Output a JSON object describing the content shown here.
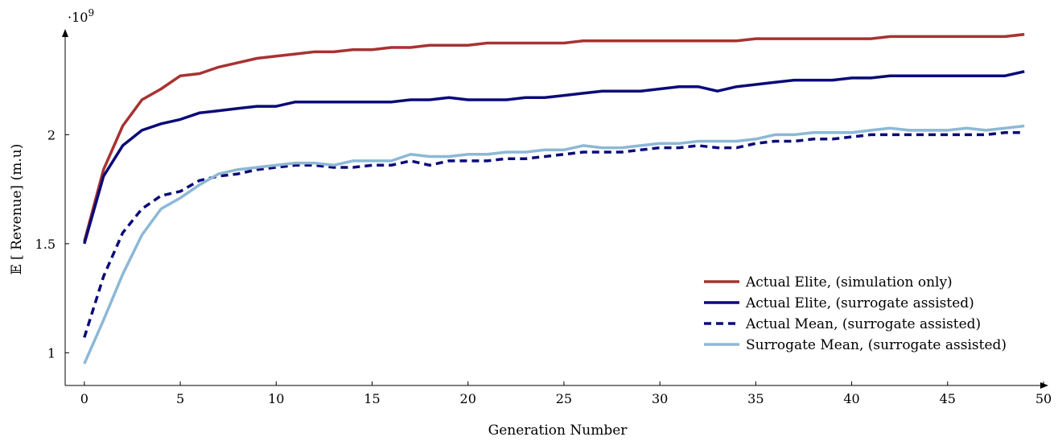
{
  "chart_data": {
    "type": "line",
    "title": "",
    "xlabel": "Generation Number",
    "ylabel": "𝔼 [ Revenue] (m.u)",
    "y_multiplier_label": "·10",
    "y_multiplier_exponent": "9",
    "xlim": [
      -1,
      50
    ],
    "ylim": [
      0.85,
      2.47
    ],
    "x_ticks": [
      0,
      5,
      10,
      15,
      20,
      25,
      30,
      35,
      40,
      45,
      50
    ],
    "y_ticks": [
      1,
      1.5,
      2
    ],
    "y_tick_labels": [
      "1",
      "1.5",
      "2"
    ],
    "legend_position": "bottom-right",
    "grid": false,
    "x": [
      0,
      1,
      2,
      3,
      4,
      5,
      6,
      7,
      8,
      9,
      10,
      11,
      12,
      13,
      14,
      15,
      16,
      17,
      18,
      19,
      20,
      21,
      22,
      23,
      24,
      25,
      26,
      27,
      28,
      29,
      30,
      31,
      32,
      33,
      34,
      35,
      36,
      37,
      38,
      39,
      40,
      41,
      42,
      43,
      44,
      45,
      46,
      47,
      48,
      49
    ],
    "series": [
      {
        "name": "Actual Elite, (simulation only)",
        "color": "#a83232",
        "style": "solid",
        "values": [
          1.51,
          1.84,
          2.04,
          2.16,
          2.21,
          2.27,
          2.28,
          2.31,
          2.33,
          2.35,
          2.36,
          2.37,
          2.38,
          2.38,
          2.39,
          2.39,
          2.4,
          2.4,
          2.41,
          2.41,
          2.41,
          2.42,
          2.42,
          2.42,
          2.42,
          2.42,
          2.43,
          2.43,
          2.43,
          2.43,
          2.43,
          2.43,
          2.43,
          2.43,
          2.43,
          2.44,
          2.44,
          2.44,
          2.44,
          2.44,
          2.44,
          2.44,
          2.45,
          2.45,
          2.45,
          2.45,
          2.45,
          2.45,
          2.45,
          2.46
        ]
      },
      {
        "name": "Actual Elite, (surrogate assisted)",
        "color": "#0a0a78",
        "style": "solid",
        "values": [
          1.5,
          1.81,
          1.95,
          2.02,
          2.05,
          2.07,
          2.1,
          2.11,
          2.12,
          2.13,
          2.13,
          2.15,
          2.15,
          2.15,
          2.15,
          2.15,
          2.15,
          2.16,
          2.16,
          2.17,
          2.16,
          2.16,
          2.16,
          2.17,
          2.17,
          2.18,
          2.19,
          2.2,
          2.2,
          2.2,
          2.21,
          2.22,
          2.22,
          2.2,
          2.22,
          2.23,
          2.24,
          2.25,
          2.25,
          2.25,
          2.26,
          2.26,
          2.27,
          2.27,
          2.27,
          2.27,
          2.27,
          2.27,
          2.27,
          2.29
        ]
      },
      {
        "name": "Actual Mean, (surrogate assisted)",
        "color": "#0a0a78",
        "style": "dashed",
        "values": [
          1.07,
          1.35,
          1.55,
          1.66,
          1.72,
          1.74,
          1.79,
          1.81,
          1.82,
          1.84,
          1.85,
          1.86,
          1.86,
          1.85,
          1.85,
          1.86,
          1.86,
          1.88,
          1.86,
          1.88,
          1.88,
          1.88,
          1.89,
          1.89,
          1.9,
          1.91,
          1.92,
          1.92,
          1.92,
          1.93,
          1.94,
          1.94,
          1.95,
          1.94,
          1.94,
          1.96,
          1.97,
          1.97,
          1.98,
          1.98,
          1.99,
          2.0,
          2.0,
          2.0,
          2.0,
          2.0,
          2.0,
          2.0,
          2.01,
          2.01
        ]
      },
      {
        "name": "Surrogate Mean, (surrogate assisted)",
        "color": "#8db8d6",
        "style": "solid",
        "values": [
          0.95,
          1.15,
          1.36,
          1.54,
          1.66,
          1.71,
          1.77,
          1.82,
          1.84,
          1.85,
          1.86,
          1.87,
          1.87,
          1.86,
          1.88,
          1.88,
          1.88,
          1.91,
          1.9,
          1.9,
          1.91,
          1.91,
          1.92,
          1.92,
          1.93,
          1.93,
          1.95,
          1.94,
          1.94,
          1.95,
          1.96,
          1.96,
          1.97,
          1.97,
          1.97,
          1.98,
          2.0,
          2.0,
          2.01,
          2.01,
          2.01,
          2.02,
          2.03,
          2.02,
          2.02,
          2.02,
          2.03,
          2.02,
          2.03,
          2.04
        ]
      }
    ]
  }
}
